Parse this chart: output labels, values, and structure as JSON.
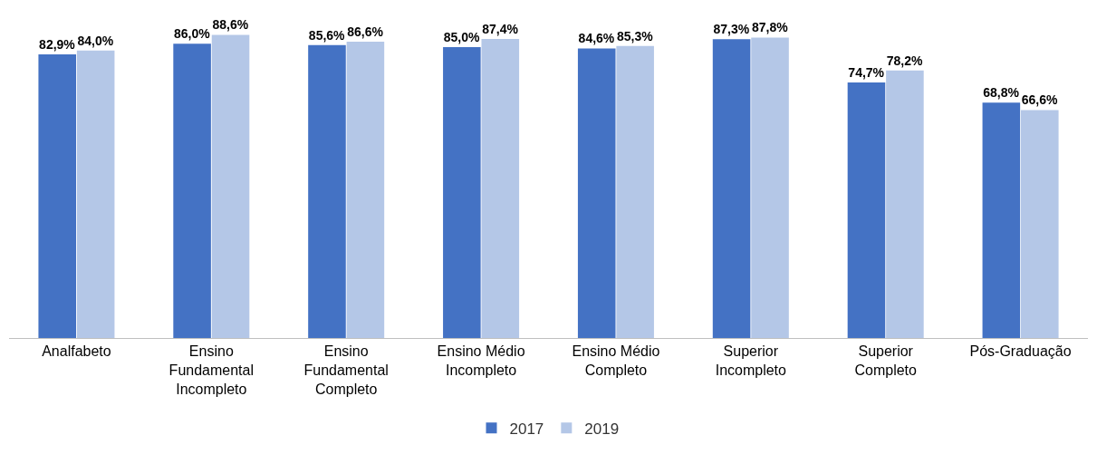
{
  "chart_data": {
    "type": "bar",
    "categories": [
      "Analfabeto",
      "Ensino Fundamental Incompleto",
      "Ensino Fundamental Completo",
      "Ensino Médio Incompleto",
      "Ensino Médio Completo",
      "Superior Incompleto",
      "Superior Completo",
      "Pós-Graduação"
    ],
    "series": [
      {
        "name": "2017",
        "color": "#4472c4",
        "values": [
          82.9,
          86.0,
          85.6,
          85.0,
          84.6,
          87.3,
          74.7,
          68.8
        ],
        "value_labels": [
          "82,9%",
          "86,0%",
          "85,6%",
          "85,0%",
          "84,6%",
          "87,3%",
          "74,7%",
          "68,8%"
        ]
      },
      {
        "name": "2019",
        "color": "#b4c7e7",
        "values": [
          84.0,
          88.6,
          86.6,
          87.4,
          85.3,
          87.8,
          78.2,
          66.6
        ],
        "value_labels": [
          "84,0%",
          "88,6%",
          "86,6%",
          "87,4%",
          "85,3%",
          "87,8%",
          "78,2%",
          "66,6%"
        ]
      }
    ],
    "grid": false,
    "legend": "bottom"
  }
}
